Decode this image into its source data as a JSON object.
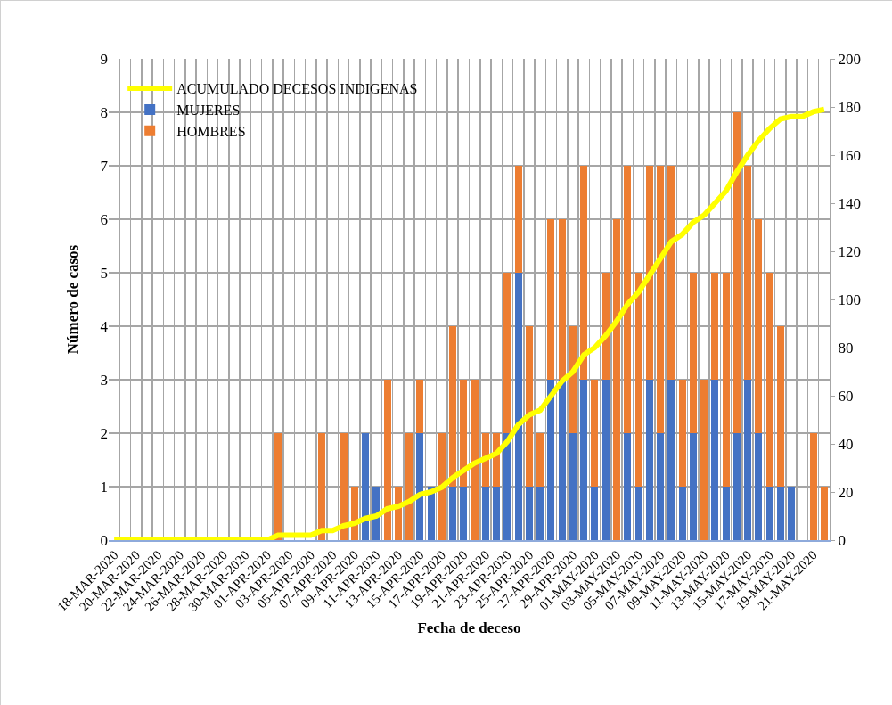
{
  "chart_data": {
    "type": "bar",
    "stacked": true,
    "xlabel": "Fecha de deceso",
    "ylabel": "Número de casos",
    "categories": [
      "18-MAR-2020",
      null,
      "20-MAR-2020",
      null,
      "22-MAR-2020",
      null,
      "24-MAR-2020",
      null,
      "26-MAR-2020",
      null,
      "28-MAR-2020",
      null,
      "30-MAR-2020",
      null,
      "01-APR-2020",
      null,
      "03-APR-2020",
      null,
      "05-APR-2020",
      null,
      "07-APR-2020",
      null,
      "09-APR-2020",
      null,
      "11-APR-2020",
      null,
      "13-APR-2020",
      null,
      "15-APR-2020",
      null,
      "17-APR-2020",
      null,
      "19-APR-2020",
      null,
      "21-APR-2020",
      null,
      "23-APR-2020",
      null,
      "25-APR-2020",
      null,
      "27-APR-2020",
      null,
      "29-APR-2020",
      null,
      "01-MAY-2020",
      null,
      "03-MAY-2020",
      null,
      "05-MAY-2020",
      null,
      "07-MAY-2020",
      null,
      "09-MAY-2020",
      null,
      "11-MAY-2020",
      null,
      "13-MAY-2020",
      null,
      "15-MAY-2020",
      null,
      "17-MAY-2020",
      null,
      "19-MAY-2020",
      null,
      "21-MAY-2020",
      null
    ],
    "series": [
      {
        "name": "MUJERES",
        "color": "#4472c4",
        "values": [
          0,
          0,
          0,
          0,
          0,
          0,
          0,
          0,
          0,
          0,
          0,
          0,
          0,
          0,
          0,
          0,
          0,
          0,
          0,
          0,
          0,
          0,
          0,
          2,
          1,
          0,
          0,
          0,
          2,
          1,
          0,
          1,
          1,
          0,
          1,
          1,
          2,
          5,
          1,
          1,
          3,
          3,
          2,
          3,
          1,
          3,
          0,
          2,
          1,
          3,
          2,
          3,
          1,
          2,
          0,
          3,
          1,
          2,
          3,
          2,
          1,
          1,
          1,
          0,
          0,
          0
        ]
      },
      {
        "name": "HOMBRES",
        "color": "#ed7d31",
        "values": [
          0,
          0,
          0,
          0,
          0,
          0,
          0,
          0,
          0,
          0,
          0,
          0,
          0,
          0,
          0,
          2,
          0,
          0,
          0,
          2,
          0,
          2,
          1,
          0,
          0,
          3,
          1,
          2,
          1,
          0,
          2,
          3,
          2,
          3,
          1,
          1,
          3,
          2,
          3,
          1,
          3,
          3,
          2,
          4,
          2,
          2,
          6,
          5,
          4,
          4,
          5,
          4,
          2,
          3,
          3,
          2,
          4,
          6,
          4,
          4,
          4,
          3,
          0,
          0,
          2,
          1
        ]
      },
      {
        "name": "ACUMULADO DECESOS INDIGENAS",
        "type": "line",
        "axis": "y2",
        "color": "#ffff00",
        "values": [
          0,
          0,
          0,
          0,
          0,
          0,
          0,
          0,
          0,
          0,
          0,
          0,
          0,
          0,
          0,
          2,
          2,
          2,
          2,
          4,
          4,
          6,
          7,
          9,
          10,
          13,
          14,
          16,
          19,
          20,
          22,
          26,
          29,
          32,
          34,
          36,
          41,
          48,
          52,
          54,
          60,
          66,
          70,
          77,
          80,
          85,
          91,
          98,
          103,
          110,
          117,
          124,
          127,
          132,
          135,
          140,
          145,
          153,
          160,
          166,
          171,
          175,
          176,
          176,
          178,
          179
        ]
      }
    ],
    "ylim": [
      0,
      9
    ],
    "yticks": [
      0,
      1,
      2,
      3,
      4,
      5,
      6,
      7,
      8,
      9
    ],
    "y2lim": [
      0,
      200
    ],
    "y2ticks": [
      0,
      20,
      40,
      60,
      80,
      100,
      120,
      140,
      160,
      180,
      200
    ],
    "grid": true,
    "legend": "top left",
    "marker": "none",
    "line_style": "solid"
  }
}
